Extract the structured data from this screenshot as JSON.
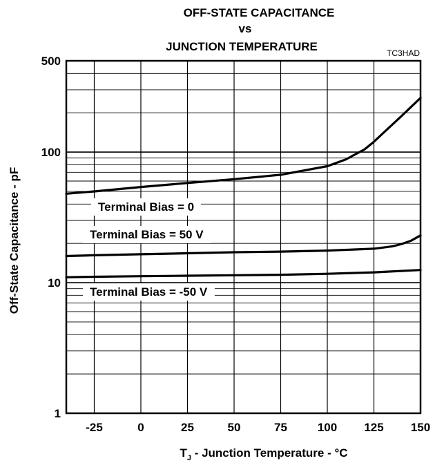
{
  "chart_data": {
    "type": "line",
    "title_lines": [
      "OFF-STATE CAPACITANCE",
      "vs",
      "JUNCTION TEMPERATURE"
    ],
    "figure_tag": "TC3HAD",
    "xlabel_prefix": "T",
    "xlabel_sub": "J",
    "xlabel_rest": " - Junction Temperature - °C",
    "ylabel": "Off-State Capacitance - pF",
    "xlim": [
      -40,
      150
    ],
    "ylim": [
      1,
      500
    ],
    "yscale": "log",
    "grid": true,
    "x_ticks": [
      -25,
      0,
      25,
      50,
      75,
      100,
      125,
      150
    ],
    "x_tick_labels": [
      "-25",
      "0",
      "25",
      "50",
      "75",
      "100",
      "125",
      "150"
    ],
    "y_ticks": [
      1,
      10,
      100,
      500
    ],
    "y_tick_labels": [
      "1",
      "10",
      "100",
      "500"
    ],
    "series": [
      {
        "name": "Terminal Bias = 0",
        "x": [
          -40,
          -25,
          0,
          25,
          50,
          75,
          100,
          110,
          120,
          125,
          130,
          140,
          150
        ],
        "y": [
          48,
          50,
          54,
          58,
          62,
          67,
          78,
          88,
          105,
          120,
          140,
          190,
          260
        ]
      },
      {
        "name": "Terminal Bias = 50 V",
        "x": [
          -40,
          -25,
          0,
          25,
          50,
          75,
          100,
          125,
          135,
          140,
          145,
          150
        ],
        "y": [
          16,
          16.2,
          16.5,
          16.8,
          17.1,
          17.3,
          17.6,
          18.2,
          19.0,
          19.8,
          21,
          23
        ]
      },
      {
        "name": "Terminal Bias = -50 V",
        "x": [
          -40,
          -25,
          0,
          25,
          50,
          75,
          100,
          125,
          150
        ],
        "y": [
          11,
          11.1,
          11.2,
          11.3,
          11.4,
          11.5,
          11.7,
          12,
          12.5
        ]
      }
    ]
  }
}
